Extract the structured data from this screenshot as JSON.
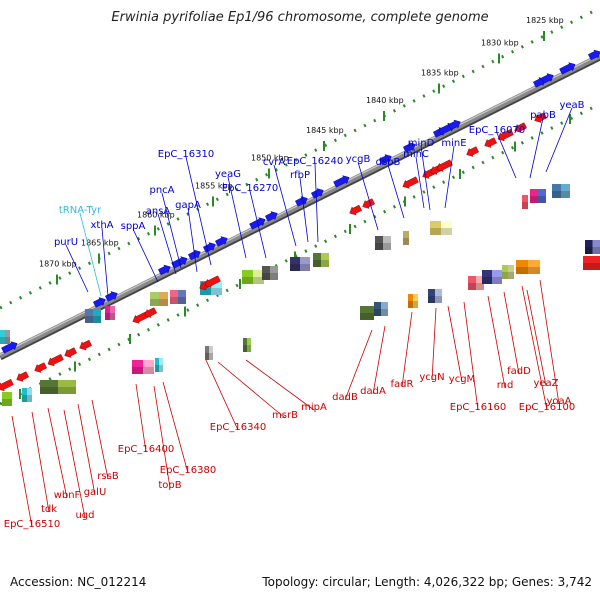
{
  "title": "Erwinia pyrifoliae Ep1/96 chromosome, complete genome",
  "accession": "Accession: NC_012214",
  "summary": "Topology: circular; Length: 4,026,322 bp; Genes: 3,742",
  "colors": {
    "forward_label": "#0000cc",
    "reverse_label": "#cc0000",
    "trna_label": "#33bbdd",
    "forward_arrow": "#1a1aee",
    "reverse_arrow": "#ee1111",
    "axis": "#888888",
    "tick": "#2a8a2a"
  },
  "scale_ticks": [
    "1825 kbp",
    "1830 kbp",
    "1835 kbp",
    "1840 kbp",
    "1845 kbp",
    "1850 kbp",
    "1855 kbp",
    "1860 kbp",
    "1865 kbp",
    "1870 kbp"
  ],
  "forward_genes": [
    "yeaB",
    "pabB",
    "EpC_16070",
    "minE",
    "minD",
    "minC",
    "dsbB",
    "ycgB",
    "EpC_16240",
    "cvrA",
    "rfbP",
    "EpC_16270",
    "yeaG",
    "EpC_16310",
    "gapA",
    "pncA",
    "ansA",
    "sppA",
    "xthA",
    "purU"
  ],
  "trna_genes": [
    "tRNA-Tyr"
  ],
  "reverse_genes": [
    "yoaA",
    "EpC_16100",
    "yeaZ",
    "fadD",
    "rnd",
    "EpC_16160",
    "ycgM",
    "ycgN",
    "fadR",
    "dadA",
    "dadB",
    "mipA",
    "msrB",
    "EpC_16340",
    "EpC_16380",
    "topB",
    "EpC_16400",
    "rssB",
    "galU",
    "ugd",
    "wbnF",
    "tdk",
    "EpC_16510"
  ]
}
